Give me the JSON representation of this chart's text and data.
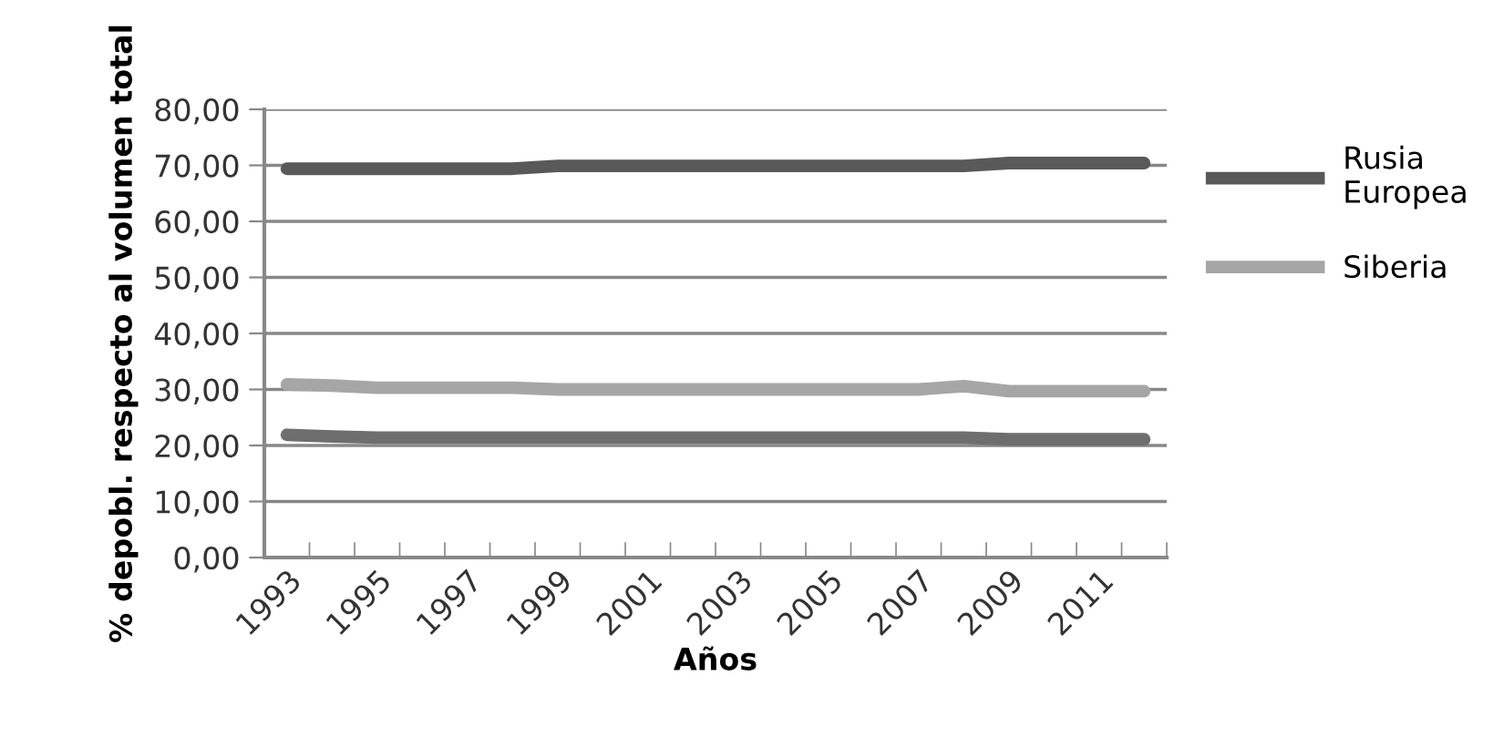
{
  "chart_data": {
    "type": "line",
    "xlabel": "Años",
    "ylabel": "% depobl. respecto al volumen total",
    "categories": [
      "1993",
      null,
      "1995",
      null,
      "1997",
      null,
      "1999",
      null,
      "2001",
      null,
      "2003",
      null,
      "2005",
      null,
      "2007",
      null,
      "2009",
      null,
      "2011",
      null
    ],
    "series": [
      {
        "name": "Rusia Europea",
        "color": "#595959",
        "values": [
          69.4,
          69.4,
          69.4,
          69.4,
          69.4,
          69.4,
          69.9,
          69.9,
          69.9,
          69.9,
          69.9,
          69.9,
          69.9,
          69.9,
          69.9,
          69.9,
          70.4,
          70.4,
          70.4,
          70.4
        ]
      },
      {
        "name": "Siberia",
        "color": "#a6a6a6",
        "values": [
          30.9,
          30.7,
          30.3,
          30.3,
          30.3,
          30.3,
          30.0,
          30.0,
          30.0,
          30.0,
          30.0,
          30.0,
          30.0,
          30.0,
          30.0,
          30.6,
          29.7,
          29.7,
          29.7,
          29.7
        ]
      },
      {
        "color": "#6e6e6e",
        "values": [
          21.9,
          21.6,
          21.4,
          21.4,
          21.4,
          21.4,
          21.4,
          21.4,
          21.4,
          21.4,
          21.4,
          21.4,
          21.4,
          21.4,
          21.4,
          21.4,
          21.1,
          21.1,
          21.1,
          21.1
        ]
      }
    ],
    "ylim": [
      0,
      80
    ],
    "yticks": [
      {
        "value": 0,
        "label": "0,00"
      },
      {
        "value": 10,
        "label": "10,00"
      },
      {
        "value": 20,
        "label": "20,00"
      },
      {
        "value": 30,
        "label": "30,00"
      },
      {
        "value": 40,
        "label": "40,00"
      },
      {
        "value": 50,
        "label": "50,00"
      },
      {
        "value": 60,
        "label": "60,00"
      },
      {
        "value": 70,
        "label": "70,00"
      },
      {
        "value": 80,
        "label": "80,00"
      }
    ],
    "grid": "y",
    "legend": "right",
    "marker": "none",
    "line_style": "solid"
  }
}
